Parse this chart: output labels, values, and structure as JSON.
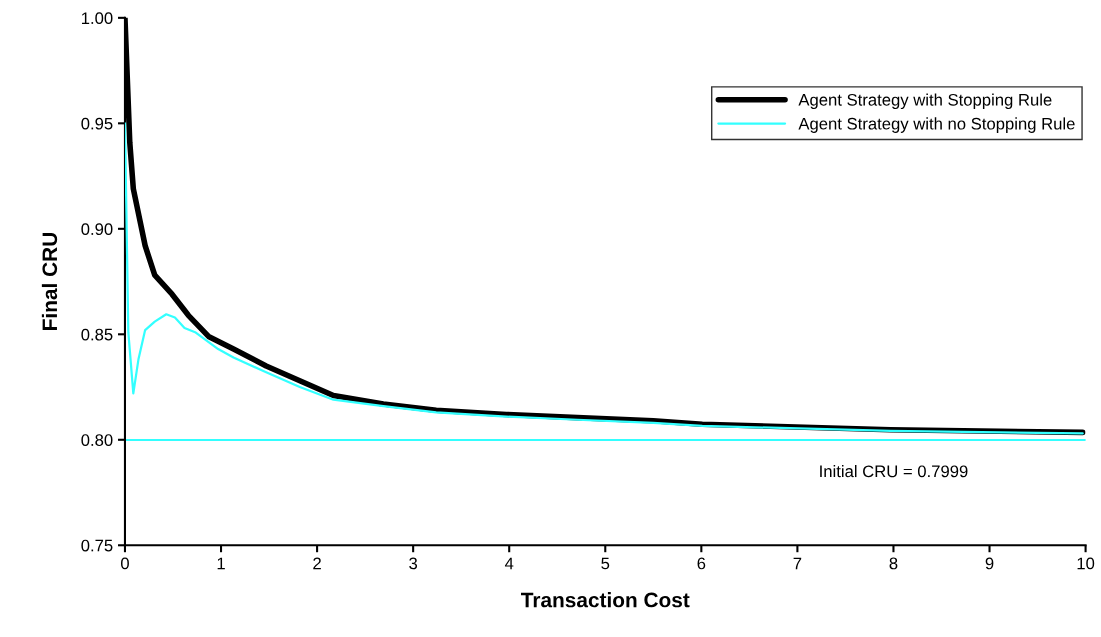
{
  "chart_data": {
    "type": "line",
    "xlabel": "Transaction Cost",
    "ylabel": "Final CRU",
    "xlim": [
      0,
      10
    ],
    "xticks": [
      0,
      1,
      2,
      3,
      4,
      5,
      6,
      7,
      8,
      9,
      10
    ],
    "ylim": [
      0.75,
      1.0
    ],
    "yticks": [
      {
        "value": 0.75,
        "label": "0.75"
      },
      {
        "value": 0.8,
        "label": "0.80"
      },
      {
        "value": 0.85,
        "label": "0.85"
      },
      {
        "value": 0.9,
        "label": "0.90"
      },
      {
        "value": 0.95,
        "label": "0.95"
      },
      {
        "value": 1.0,
        "label": "1.00"
      }
    ],
    "grid": false,
    "legend": "right",
    "marker": "none",
    "line_style": "solid",
    "series": [
      {
        "name": "Agent Strategy with Stopping Rule",
        "color": "#000000",
        "x": [
          0,
          0.05,
          0.087,
          0.21,
          0.31,
          0.49,
          0.66,
          0.87,
          1.13,
          1.47,
          1.82,
          2.17,
          2.69,
          3.24,
          3.97,
          4.71,
          5.5,
          6.01,
          7.97,
          9.97
        ],
        "values": [
          1.0,
          0.941,
          0.919,
          0.892,
          0.878,
          0.869,
          0.859,
          0.849,
          0.843,
          0.835,
          0.828,
          0.821,
          0.817,
          0.814,
          0.812,
          0.8105,
          0.809,
          0.8074,
          0.8048,
          0.8035
        ]
      },
      {
        "name": "Agent Strategy with no Stopping Rule",
        "color": "#33ffff",
        "x": [
          0,
          0.035,
          0.087,
          0.14,
          0.21,
          0.31,
          0.43,
          0.52,
          0.62,
          0.73,
          0.97,
          1.13,
          1.47,
          1.82,
          2.17,
          2.69,
          3.24,
          3.97,
          4.71,
          5.5,
          6.01,
          7.97,
          9.97
        ],
        "values": [
          0.95,
          0.851,
          0.822,
          0.838,
          0.852,
          0.856,
          0.8595,
          0.858,
          0.853,
          0.851,
          0.843,
          0.839,
          0.832,
          0.825,
          0.819,
          0.816,
          0.813,
          0.811,
          0.8095,
          0.808,
          0.8066,
          0.8042,
          0.803
        ]
      }
    ],
    "ref_lines": [
      {
        "axis": "y",
        "value": 0.7999,
        "label": "Initial CRU = 0.7999",
        "color": "#33ffff",
        "line_style": "solid"
      }
    ]
  }
}
